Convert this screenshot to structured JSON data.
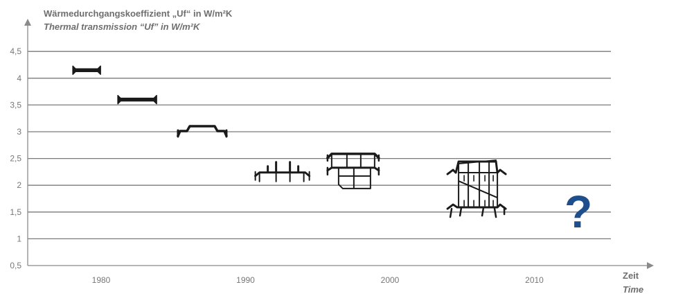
{
  "chart_data": {
    "type": "scatter",
    "title": "Wärmedurchgangskoeffizient „Uf“ in W/m²K",
    "subtitle": "Thermal transmission “Uf” in W/m²K",
    "x_unit": "Zeit",
    "x_unit_en": "Time",
    "y_ticks": [
      "0,5",
      "1",
      "1,5",
      "2",
      "2,5",
      "3",
      "3,5",
      "4",
      "4,5"
    ],
    "y_tick_values": [
      0.5,
      1,
      1.5,
      2,
      2.5,
      3,
      3.5,
      4,
      4.5
    ],
    "x_ticks": [
      "1980",
      "1990",
      "2000",
      "2010"
    ],
    "x_tick_values": [
      1980,
      1990,
      2000,
      2010
    ],
    "xlim": [
      1975,
      2018
    ],
    "ylim": [
      0.5,
      4.5
    ],
    "grid": "horizontal",
    "points": [
      {
        "x": 1979,
        "y": 4.15,
        "icon": "flat-profile-icon"
      },
      {
        "x": 1982.5,
        "y": 3.6,
        "icon": "flat-profile-icon"
      },
      {
        "x": 1987,
        "y": 3.0,
        "icon": "raised-profile-icon"
      },
      {
        "x": 1992.5,
        "y": 2.2,
        "icon": "insulated-profile-icon"
      },
      {
        "x": 1997.5,
        "y": 2.25,
        "icon": "multi-chamber-profile-icon"
      },
      {
        "x": 2006,
        "y": 1.95,
        "icon": "thermal-break-profile-icon"
      }
    ],
    "future_marker": "?",
    "colors": {
      "grid": "#7a7a7a",
      "axis": "#8a8a8a",
      "profile": "#1a1a1a",
      "question": "#1f4e8c",
      "text": "#6e6e6e"
    }
  }
}
